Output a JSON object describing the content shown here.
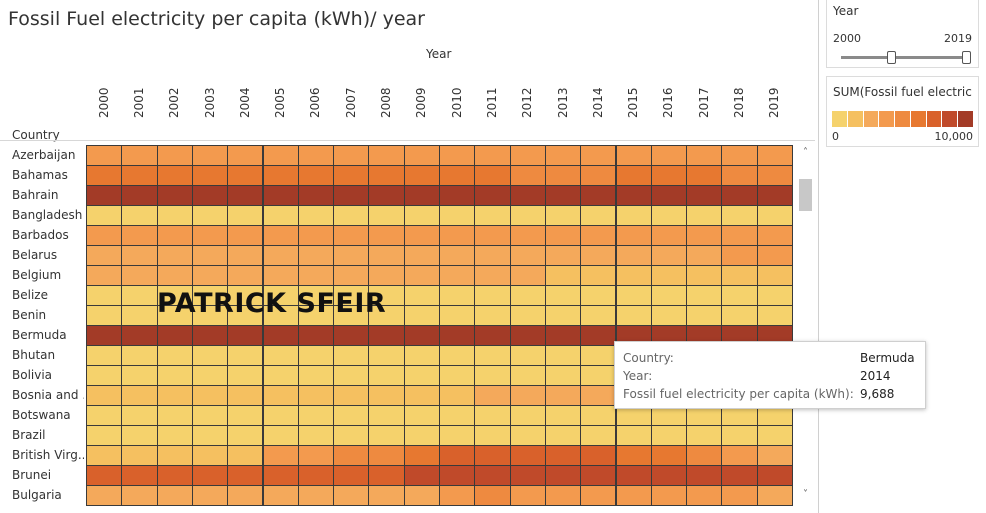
{
  "title": "Fossil Fuel electricity per capita (kWh)/ year",
  "chart_data": {
    "type": "heatmap",
    "title": "Fossil Fuel electricity per capita (kWh)/ year",
    "x_header": "Year",
    "y_header": "Country",
    "years": [
      "2000",
      "2001",
      "2002",
      "2003",
      "2004",
      "2005",
      "2006",
      "2007",
      "2008",
      "2009",
      "2010",
      "2011",
      "2012",
      "2013",
      "2014",
      "2015",
      "2016",
      "2017",
      "2018",
      "2019"
    ],
    "countries": [
      "Azerbaijan",
      "Bahamas",
      "Bahrain",
      "Bangladesh",
      "Barbados",
      "Belarus",
      "Belgium",
      "Belize",
      "Benin",
      "Bermuda",
      "Bhutan",
      "Bolivia",
      "Bosnia and ..",
      "Botswana",
      "Brazil",
      "British Virg..",
      "Brunei",
      "Bulgaria"
    ],
    "color_levels": [
      [
        3,
        3,
        3,
        3,
        3,
        3,
        3,
        3,
        3,
        3,
        3,
        3,
        3,
        3,
        3,
        3,
        3,
        3,
        3,
        3
      ],
      [
        5,
        5,
        5,
        5,
        5,
        5,
        5,
        5,
        5,
        5,
        5,
        5,
        4,
        4,
        4,
        5,
        5,
        5,
        4,
        4
      ],
      [
        8,
        8,
        8,
        8,
        8,
        8,
        8,
        8,
        8,
        8,
        8,
        8,
        8,
        8,
        8,
        8,
        8,
        8,
        8,
        8
      ],
      [
        0,
        0,
        0,
        0,
        0,
        0,
        0,
        0,
        0,
        0,
        0,
        0,
        0,
        0,
        0,
        0,
        0,
        0,
        0,
        0
      ],
      [
        3,
        3,
        3,
        3,
        3,
        3,
        3,
        3,
        3,
        3,
        3,
        3,
        3,
        3,
        3,
        3,
        3,
        3,
        3,
        3
      ],
      [
        2,
        2,
        2,
        2,
        2,
        2,
        2,
        2,
        2,
        2,
        2,
        2,
        2,
        2,
        2,
        2,
        2,
        2,
        3,
        3
      ],
      [
        2,
        2,
        2,
        2,
        2,
        2,
        2,
        2,
        2,
        2,
        2,
        2,
        2,
        1,
        1,
        1,
        1,
        1,
        1,
        1
      ],
      [
        0,
        0,
        0,
        0,
        0,
        0,
        0,
        0,
        0,
        0,
        0,
        0,
        0,
        0,
        0,
        0,
        0,
        0,
        0,
        0
      ],
      [
        0,
        0,
        0,
        0,
        0,
        0,
        0,
        0,
        0,
        0,
        0,
        0,
        0,
        0,
        0,
        0,
        0,
        0,
        0,
        0
      ],
      [
        8,
        8,
        8,
        8,
        8,
        8,
        8,
        8,
        8,
        8,
        8,
        8,
        8,
        8,
        8,
        8,
        8,
        8,
        8,
        8
      ],
      [
        0,
        0,
        0,
        0,
        0,
        0,
        0,
        0,
        0,
        0,
        0,
        0,
        0,
        0,
        0,
        0,
        0,
        0,
        0,
        0
      ],
      [
        0,
        0,
        0,
        0,
        0,
        0,
        0,
        0,
        0,
        0,
        0,
        0,
        0,
        0,
        0,
        0,
        0,
        0,
        0,
        0
      ],
      [
        1,
        1,
        1,
        1,
        1,
        1,
        1,
        1,
        1,
        1,
        1,
        2,
        2,
        2,
        2,
        2,
        2,
        2,
        2,
        2
      ],
      [
        0,
        0,
        0,
        0,
        0,
        0,
        0,
        0,
        0,
        0,
        0,
        0,
        0,
        0,
        0,
        0,
        0,
        0,
        0,
        0
      ],
      [
        0,
        0,
        0,
        0,
        0,
        0,
        0,
        0,
        0,
        0,
        0,
        0,
        0,
        0,
        0,
        0,
        0,
        0,
        0,
        0
      ],
      [
        1,
        1,
        1,
        1,
        1,
        3,
        3,
        4,
        4,
        5,
        6,
        6,
        6,
        6,
        6,
        5,
        5,
        4,
        3,
        2
      ],
      [
        6,
        6,
        6,
        6,
        6,
        6,
        6,
        6,
        6,
        7,
        7,
        7,
        7,
        7,
        7,
        7,
        7,
        7,
        7,
        7
      ],
      [
        2,
        2,
        2,
        2,
        2,
        2,
        2,
        2,
        2,
        2,
        3,
        4,
        3,
        3,
        3,
        3,
        3,
        3,
        3,
        2
      ]
    ],
    "color_palette": [
      "#f5d26c",
      "#f5c060",
      "#f4a95b",
      "#f39a4e",
      "#ee8a40",
      "#e77830",
      "#d9612b",
      "#c04a2a",
      "#a33b27"
    ],
    "color_range": [
      0,
      10000
    ]
  },
  "filter": {
    "title": "Year",
    "min_label": "2000",
    "max_label": "2019",
    "range": [
      2000,
      2019
    ]
  },
  "legend": {
    "title": "SUM(Fossil fuel electric...",
    "min_label": "0",
    "max_label": "10,000"
  },
  "tooltip": {
    "rows": [
      {
        "label": "Country:",
        "value": "Bermuda"
      },
      {
        "label": "Year:",
        "value": "2014"
      },
      {
        "label": "Fossil fuel electricity per capita (kWh):",
        "value": "9,688"
      }
    ]
  },
  "watermark": "PATRICK SFEIR",
  "icons": {
    "scroll_up": "chevron-up-icon",
    "scroll_down": "chevron-down-icon"
  }
}
